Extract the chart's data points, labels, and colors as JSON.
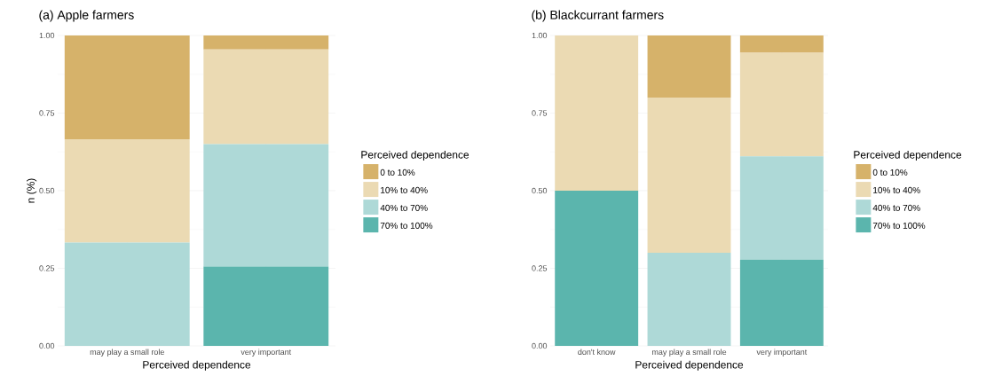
{
  "chart_data": [
    {
      "type": "bar",
      "stacked": true,
      "title": "(a) Apple farmers",
      "xlabel": "Perceived dependence",
      "ylabel": "n (%)",
      "legend_title": "Perceived dependence",
      "legend": "right",
      "grid": true,
      "categories": [
        "may play a small role",
        "very important"
      ],
      "ylim": [
        0,
        1
      ],
      "yticks": [
        {
          "value": 0,
          "label": "0.00"
        },
        {
          "value": 0.25,
          "label": "0.25"
        },
        {
          "value": 0.5,
          "label": "0.50"
        },
        {
          "value": 0.75,
          "label": "0.75"
        },
        {
          "value": 1,
          "label": "1.00"
        }
      ],
      "series": [
        {
          "name": "70% to 100%",
          "color": "#5bb5ad",
          "values": [
            0,
            0.256
          ]
        },
        {
          "name": "40% to 70%",
          "color": "#aed9d7",
          "values": [
            0.333,
            0.394
          ]
        },
        {
          "name": "10% to 40%",
          "color": "#ebdab3",
          "values": [
            0.333,
            0.305
          ]
        },
        {
          "name": "0 to 10%",
          "color": "#d6b26a",
          "values": [
            0.334,
            0.045
          ]
        }
      ]
    },
    {
      "type": "bar",
      "stacked": true,
      "title": "(b) Blackcurrant farmers",
      "xlabel": "Perceived dependence",
      "legend_title": "Perceived dependence",
      "legend": "right",
      "grid": true,
      "categories": [
        "don't know",
        "may play a small role",
        "very important"
      ],
      "ylim": [
        0,
        1
      ],
      "yticks": [
        {
          "value": 0,
          "label": "0.00"
        },
        {
          "value": 0.25,
          "label": "0.25"
        },
        {
          "value": 0.5,
          "label": "0.50"
        },
        {
          "value": 0.75,
          "label": "0.75"
        },
        {
          "value": 1,
          "label": "1.00"
        }
      ],
      "series": [
        {
          "name": "70% to 100%",
          "color": "#5bb5ad",
          "values": [
            0.5,
            0,
            0.278
          ]
        },
        {
          "name": "40% to 70%",
          "color": "#aed9d7",
          "values": [
            0,
            0.3,
            0.333
          ]
        },
        {
          "name": "10% to 40%",
          "color": "#ebdab3",
          "values": [
            0.5,
            0.5,
            0.333
          ]
        },
        {
          "name": "0 to 10%",
          "color": "#d6b26a",
          "values": [
            0,
            0.2,
            0.056
          ]
        }
      ]
    }
  ]
}
